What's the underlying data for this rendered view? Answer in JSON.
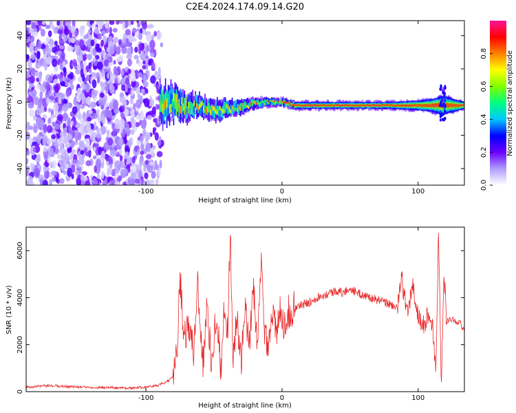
{
  "title": "C2E4.2024.174.09.14.G20",
  "chart_data": [
    {
      "type": "heatmap",
      "xlabel": "Height of straight line (km)",
      "ylabel": "Frequency (Hz)",
      "xlim": [
        -188,
        134
      ],
      "ylim": [
        -50,
        49
      ],
      "xticks": [
        -100,
        0,
        100
      ],
      "xtick_labels": [
        "-100",
        "0",
        "100"
      ],
      "yticks": [
        -40,
        -20,
        0,
        20,
        40
      ],
      "ytick_labels": [
        "-40",
        "-20",
        "0",
        "20",
        "40"
      ],
      "colorbar": {
        "label": "Normalized spectral amplitude",
        "range": [
          0,
          1
        ],
        "ticks": [
          0.0,
          0.2,
          0.4,
          0.6,
          0.8
        ],
        "tick_labels": [
          "0.0",
          "0.2",
          "0.4",
          "0.6",
          "0.8"
        ],
        "colormap": [
          "#ffffff",
          "#b09cff",
          "#6a00ff",
          "#0000ff",
          "#00c8ff",
          "#00ff80",
          "#80ff00",
          "#ffff00",
          "#ff8000",
          "#ff0000",
          "#ff1493"
        ]
      },
      "noise_region_x": [
        -188,
        -88
      ],
      "trace_x": [
        -90,
        -80,
        -70,
        -60,
        -50,
        -40,
        -30,
        -20,
        -10,
        0,
        10,
        40,
        80,
        100,
        110,
        118,
        134
      ],
      "trace_freq": [
        -2,
        0,
        -3,
        -2,
        -5,
        -4,
        -3,
        -1,
        0,
        0,
        -2,
        -2,
        -2,
        -2,
        -2,
        -2,
        -2
      ],
      "trace_spread": [
        6,
        5,
        4,
        3,
        3,
        2.5,
        2,
        1.5,
        1.2,
        1,
        1,
        1,
        1,
        1.5,
        2,
        3,
        1
      ]
    },
    {
      "type": "line",
      "xlabel": "Height of straight line (km)",
      "ylabel": "SNR (10 * v/v)",
      "xlim": [
        -188,
        134
      ],
      "ylim": [
        0,
        7000
      ],
      "xticks": [
        -100,
        0,
        100
      ],
      "xtick_labels": [
        "-100",
        "0",
        "100"
      ],
      "yticks": [
        0,
        2000,
        4000,
        6000
      ],
      "ytick_labels": [
        "0",
        "2000",
        "4000",
        "6000"
      ],
      "color": "#e8282a",
      "series": [
        {
          "x": [
            -188,
            -170,
            -150,
            -130,
            -110,
            -92,
            -85,
            -80,
            -77,
            -75,
            -72,
            -68,
            -65,
            -62,
            -58,
            -55,
            -52,
            -48,
            -45,
            -42,
            -40,
            -38,
            -36,
            -33,
            -30,
            -27,
            -24,
            -21,
            -18,
            -15,
            -13,
            -10,
            -7,
            -4,
            -1,
            2,
            5,
            10,
            15,
            20,
            25,
            30,
            35,
            40,
            45,
            50,
            55,
            60,
            65,
            70,
            75,
            80,
            85,
            88,
            92,
            96,
            100,
            104,
            108,
            111,
            113,
            115,
            117,
            119,
            121,
            124,
            128,
            131,
            134
          ],
          "y": [
            200,
            250,
            200,
            180,
            150,
            250,
            400,
            600,
            2200,
            4900,
            2400,
            2800,
            1600,
            4700,
            1100,
            3700,
            1200,
            3500,
            900,
            3900,
            2500,
            6900,
            1500,
            3100,
            1100,
            3500,
            1800,
            4600,
            1900,
            5600,
            2600,
            2100,
            3500,
            2300,
            3600,
            2800,
            3400,
            3600,
            3700,
            3800,
            4000,
            4100,
            4200,
            4300,
            4200,
            4400,
            4200,
            4100,
            4000,
            3900,
            3800,
            3700,
            3600,
            4800,
            3300,
            4500,
            3200,
            2800,
            3400,
            2600,
            700,
            6900,
            500,
            5000,
            3000,
            3100,
            3000,
            2900,
            2600
          ]
        }
      ]
    }
  ]
}
